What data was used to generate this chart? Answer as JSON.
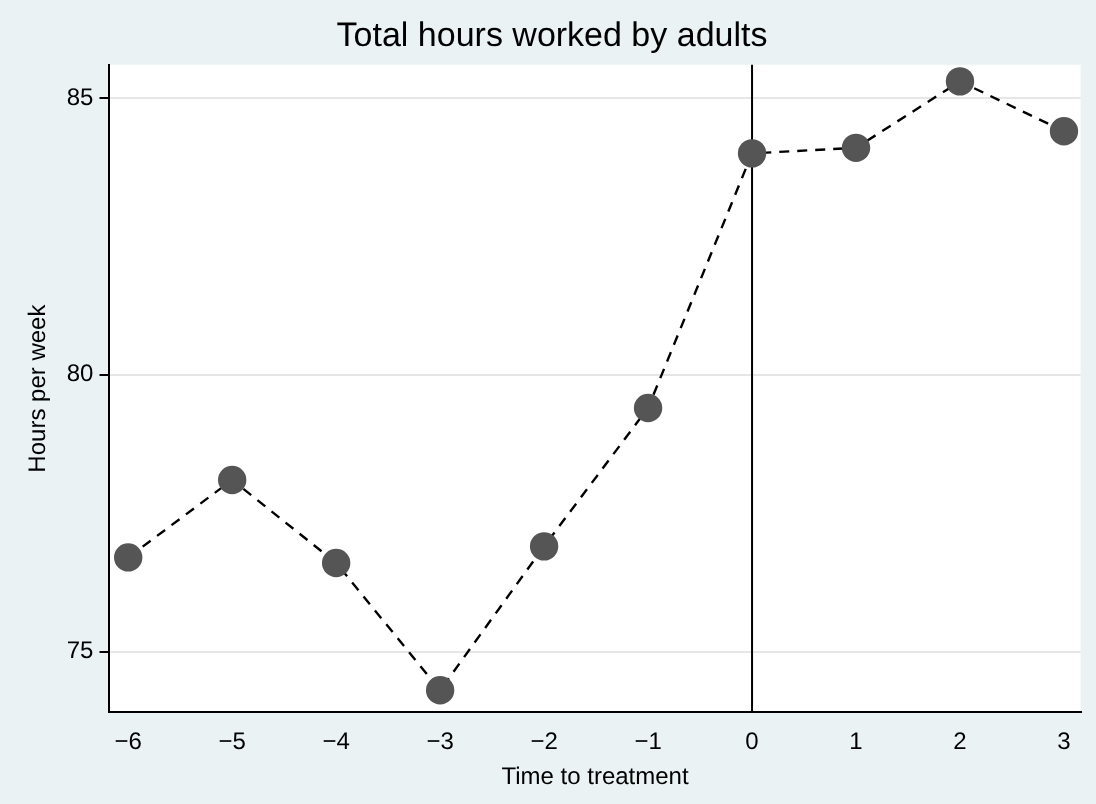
{
  "chart_data": {
    "type": "line",
    "title": "Total hours worked by adults",
    "xlabel": "Time to treatment",
    "ylabel": "Hours per week",
    "x": [
      -6,
      -5,
      -4,
      -3,
      -2,
      -1,
      0,
      1,
      2,
      3
    ],
    "series": [
      {
        "color": "#555555",
        "values": [
          76.7,
          78.1,
          76.6,
          74.3,
          76.9,
          79.4,
          84.0,
          84.1,
          85.3,
          84.4
        ]
      }
    ],
    "xlim": [
      -6.18,
      3.16
    ],
    "xticks": [
      -6,
      -5,
      -4,
      -3,
      -2,
      -1,
      0,
      1,
      2,
      3
    ],
    "ylim": [
      73.9,
      85.6
    ],
    "yticks": [
      75,
      80,
      85
    ],
    "grid": "y",
    "marker": "circle",
    "line_style": "dashed",
    "legend": false,
    "ref_lines": [
      {
        "axis": "x",
        "value": 0,
        "color": "#000000"
      }
    ]
  }
}
